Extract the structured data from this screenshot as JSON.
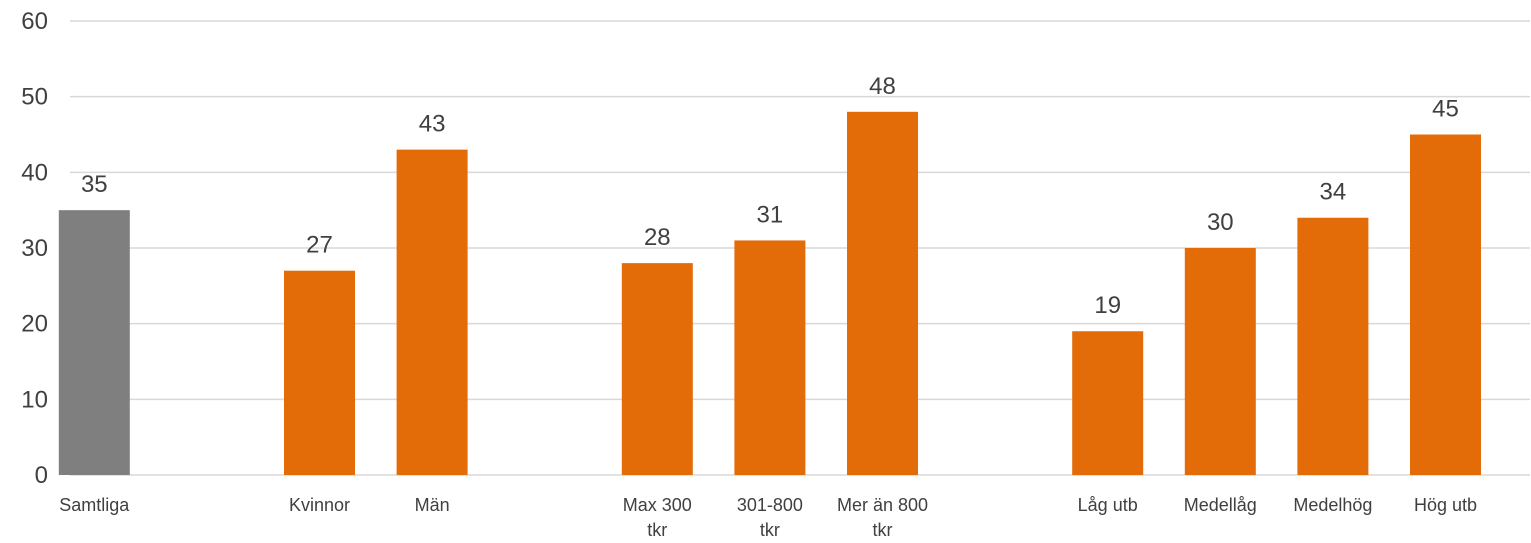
{
  "chart_data": {
    "type": "bar",
    "categories": [
      [
        "Samtliga"
      ],
      [],
      [
        "Kvinnor"
      ],
      [
        "Män"
      ],
      [],
      [
        "Max 300",
        "tkr"
      ],
      [
        "301-800",
        "tkr"
      ],
      [
        "Mer än 800",
        "tkr"
      ],
      [],
      [
        "Låg utb"
      ],
      [
        "Medellåg"
      ],
      [
        "Medelhög"
      ],
      [
        "Hög utb"
      ]
    ],
    "values": [
      35,
      null,
      27,
      43,
      null,
      28,
      31,
      48,
      null,
      19,
      30,
      34,
      45
    ],
    "bar_colors": [
      "#7f7f7f",
      null,
      "#e36c09",
      "#e36c09",
      null,
      "#e36c09",
      "#e36c09",
      "#e36c09",
      null,
      "#e36c09",
      "#e36c09",
      "#e36c09",
      "#e36c09"
    ],
    "ylim": [
      0,
      60
    ],
    "yticks": [
      0,
      10,
      20,
      30,
      40,
      50,
      60
    ],
    "grid": true,
    "data_labels": true,
    "colors": {
      "gridline": "#d9d9d9",
      "text": "#404040",
      "highlight": "#7f7f7f",
      "accent": "#e36c09"
    }
  }
}
